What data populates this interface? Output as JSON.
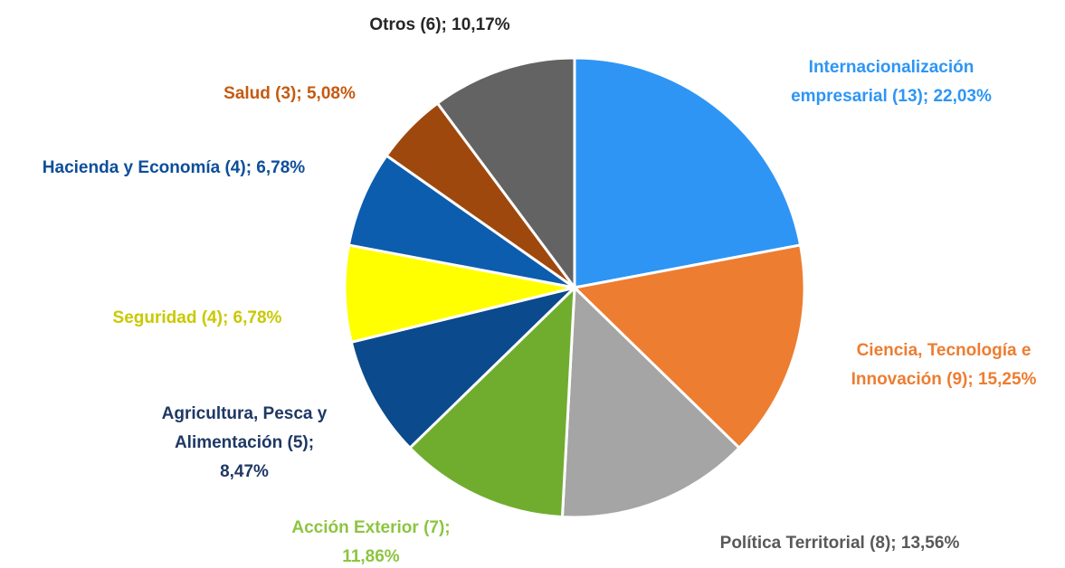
{
  "chart_data": {
    "type": "pie",
    "values": [
      22.03,
      15.25,
      13.56,
      11.86,
      8.47,
      6.78,
      6.78,
      5.08,
      10.17
    ],
    "value_labels": [
      "Internacionalización\nempresarial (13); 22,03%",
      "Ciencia, Tecnología e\nInnovación (9); 15,25%",
      "Política Territorial (8); 13,56%",
      "Acción Exterior (7);\n11,86%",
      "Agricultura, Pesca y\nAlimentación (5);\n8,47%",
      "Seguridad (4); 6,78%",
      "Hacienda y Economía (4); 6,78%",
      "Salud (3); 5,08%",
      "Otros (6); 10,17%"
    ],
    "colors": [
      "#2e95f5",
      "#ed7d31",
      "#a5a5a5",
      "#70ad2f",
      "#0b4a8c",
      "#ffff00",
      "#0c5dae",
      "#9e480e",
      "#636363"
    ],
    "label_colors": [
      "#2e95f5",
      "#ed7d31",
      "#595959",
      "#8cc540",
      "#1f3864",
      "#c9c900",
      "#0c4e9a",
      "#c55a11",
      "#262626"
    ]
  }
}
